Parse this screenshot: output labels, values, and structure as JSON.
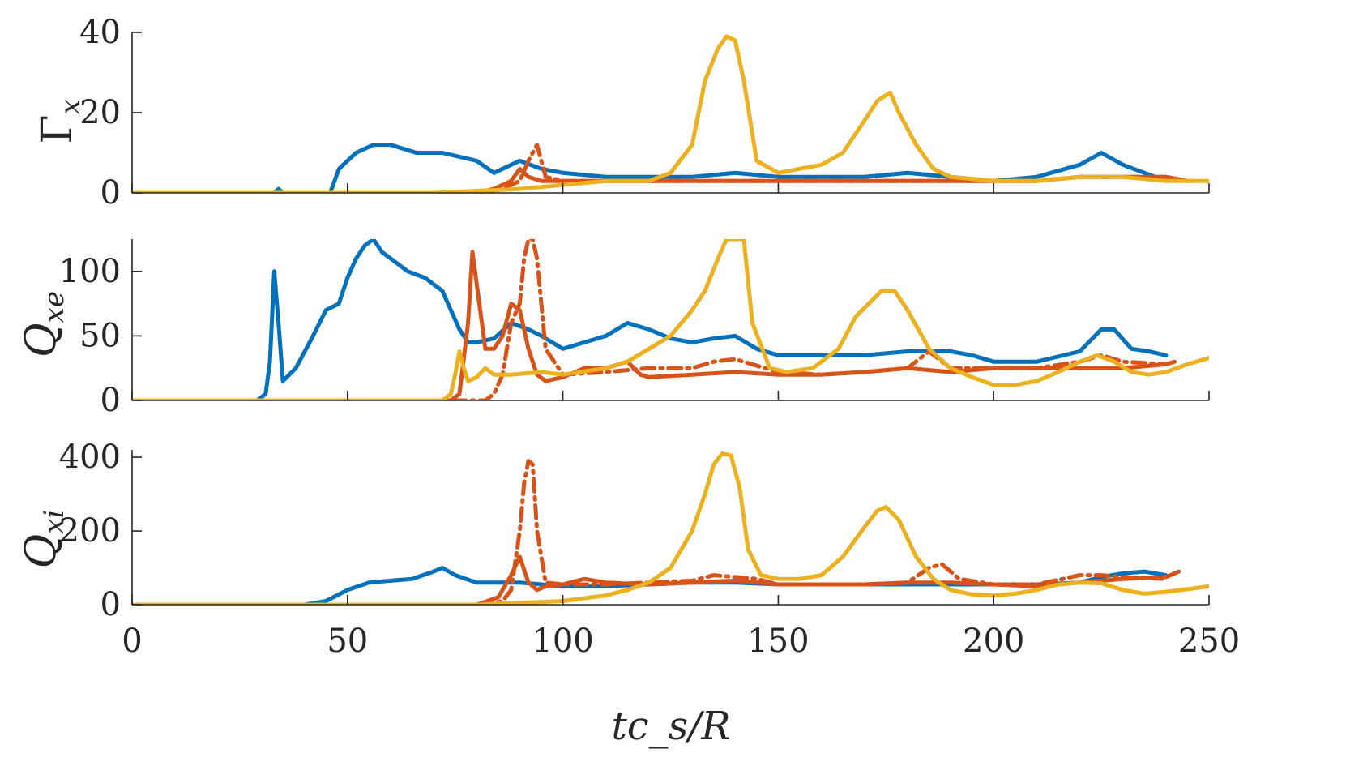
{
  "colors": {
    "blue": "#0072BD",
    "orange": "#D95319",
    "yellow": "#EDB120",
    "axis": "#262626"
  },
  "chart_data": [
    {
      "type": "line",
      "panel": "top",
      "ylabel": "Γ_x",
      "ylabel_main": "Γ",
      "ylabel_sub": "x",
      "xlabel": "",
      "xlim": [
        0,
        250
      ],
      "ylim": [
        0,
        40
      ],
      "yticks": [
        0,
        20,
        40
      ],
      "series": [
        {
          "name": "blue solid",
          "color_key": "blue",
          "dash": "solid",
          "x": [
            0,
            33,
            34,
            35,
            46,
            48,
            52,
            56,
            60,
            66,
            72,
            76,
            80,
            84,
            90,
            95,
            100,
            110,
            120,
            130,
            140,
            150,
            160,
            170,
            180,
            190,
            200,
            210,
            220,
            225,
            230,
            235,
            240
          ],
          "y": [
            0,
            0,
            1,
            0,
            0,
            6,
            10,
            12,
            12,
            10,
            10,
            9,
            8,
            5,
            8,
            6,
            5,
            4,
            4,
            4,
            5,
            4,
            4,
            4,
            5,
            4,
            3,
            4,
            7,
            10,
            7,
            5,
            3
          ]
        },
        {
          "name": "orange solid",
          "color_key": "orange",
          "dash": "solid",
          "x": [
            0,
            80,
            84,
            88,
            90,
            92,
            95,
            100,
            110,
            120,
            130,
            140,
            150,
            160,
            170,
            180,
            190,
            200,
            210,
            220,
            230,
            240,
            245
          ],
          "y": [
            0,
            0,
            1,
            3,
            6,
            4,
            3,
            3,
            3,
            3,
            3,
            3,
            3,
            3,
            3,
            3,
            3,
            3,
            3,
            4,
            4,
            4,
            3
          ]
        },
        {
          "name": "orange dash-dot",
          "color_key": "orange",
          "dash": "dashdot",
          "x": [
            0,
            82,
            86,
            90,
            92,
            94,
            96,
            100,
            110,
            120,
            130,
            140,
            150,
            160,
            170,
            180,
            190,
            200,
            210,
            220,
            230,
            240,
            245
          ],
          "y": [
            0,
            0,
            1,
            3,
            8,
            12,
            4,
            3,
            3,
            3,
            3,
            3,
            3,
            3,
            3,
            3,
            3,
            3,
            3,
            4,
            4,
            4,
            3
          ]
        },
        {
          "name": "yellow solid",
          "color_key": "yellow",
          "dash": "solid",
          "x": [
            0,
            70,
            80,
            90,
            100,
            110,
            120,
            125,
            130,
            133,
            136,
            138,
            140,
            142,
            145,
            150,
            155,
            160,
            165,
            170,
            173,
            176,
            178,
            182,
            186,
            190,
            200,
            210,
            220,
            230,
            240,
            250
          ],
          "y": [
            0,
            0,
            0.5,
            1,
            2,
            3,
            3,
            5,
            12,
            28,
            36,
            39,
            38,
            28,
            8,
            5,
            6,
            7,
            10,
            18,
            23,
            25,
            20,
            12,
            6,
            4,
            3,
            3,
            4,
            4,
            3,
            3
          ]
        }
      ]
    },
    {
      "type": "line",
      "panel": "middle",
      "ylabel": "Q_xe",
      "ylabel_main": "Q",
      "ylabel_sub": "xe",
      "xlabel": "",
      "xlim": [
        0,
        250
      ],
      "ylim": [
        0,
        125
      ],
      "yticks": [
        0,
        50,
        100
      ],
      "series": [
        {
          "name": "blue solid",
          "color_key": "blue",
          "dash": "solid",
          "x": [
            0,
            29,
            31,
            32,
            33,
            34,
            35,
            38,
            42,
            45,
            48,
            50,
            52,
            54,
            56,
            58,
            60,
            64,
            68,
            72,
            74,
            76,
            78,
            80,
            84,
            88,
            92,
            95,
            100,
            105,
            110,
            115,
            120,
            125,
            130,
            135,
            140,
            145,
            150,
            160,
            170,
            180,
            190,
            195,
            200,
            210,
            220,
            225,
            228,
            232,
            236,
            240
          ],
          "y": [
            0,
            0,
            5,
            30,
            100,
            60,
            15,
            25,
            50,
            70,
            75,
            95,
            110,
            120,
            125,
            115,
            110,
            100,
            95,
            85,
            70,
            55,
            45,
            45,
            48,
            60,
            55,
            50,
            40,
            45,
            50,
            60,
            55,
            48,
            45,
            48,
            50,
            40,
            35,
            35,
            35,
            38,
            38,
            35,
            30,
            30,
            38,
            55,
            55,
            40,
            38,
            35
          ]
        },
        {
          "name": "orange solid",
          "color_key": "orange",
          "dash": "solid",
          "x": [
            0,
            74,
            76,
            78,
            79,
            80,
            82,
            84,
            86,
            88,
            90,
            92,
            94,
            96,
            100,
            105,
            110,
            115,
            118,
            120,
            130,
            140,
            150,
            160,
            170,
            180,
            190,
            200,
            210,
            220,
            230,
            240,
            242
          ],
          "y": [
            0,
            0,
            5,
            60,
            115,
            90,
            40,
            40,
            50,
            75,
            70,
            40,
            20,
            15,
            18,
            25,
            25,
            30,
            20,
            18,
            20,
            22,
            20,
            20,
            22,
            25,
            22,
            25,
            25,
            25,
            25,
            28,
            30
          ]
        },
        {
          "name": "orange dash-dot",
          "color_key": "orange",
          "dash": "dashdot",
          "x": [
            0,
            82,
            84,
            86,
            88,
            90,
            91,
            92,
            93,
            94,
            96,
            100,
            110,
            120,
            130,
            135,
            140,
            150,
            160,
            170,
            180,
            185,
            190,
            200,
            210,
            220,
            225,
            230,
            240
          ],
          "y": [
            0,
            0,
            5,
            20,
            60,
            75,
            110,
            125,
            125,
            110,
            40,
            20,
            22,
            25,
            25,
            30,
            32,
            22,
            20,
            22,
            25,
            38,
            25,
            25,
            25,
            30,
            35,
            30,
            28
          ]
        },
        {
          "name": "yellow solid",
          "color_key": "yellow",
          "dash": "solid",
          "x": [
            0,
            72,
            74,
            75,
            76,
            77,
            78,
            80,
            82,
            84,
            88,
            95,
            100,
            110,
            115,
            120,
            125,
            130,
            133,
            136,
            138,
            140,
            142,
            144,
            148,
            152,
            158,
            164,
            168,
            171,
            174,
            177,
            180,
            185,
            190,
            195,
            200,
            205,
            210,
            215,
            220,
            224,
            228,
            232,
            236,
            240,
            245,
            250
          ],
          "y": [
            0,
            0,
            5,
            20,
            38,
            25,
            15,
            18,
            25,
            20,
            20,
            22,
            20,
            25,
            30,
            40,
            50,
            70,
            85,
            110,
            125,
            125,
            125,
            60,
            25,
            22,
            25,
            40,
            65,
            75,
            85,
            85,
            70,
            40,
            25,
            18,
            12,
            12,
            15,
            22,
            30,
            35,
            30,
            22,
            20,
            22,
            28,
            33
          ]
        }
      ]
    },
    {
      "type": "line",
      "panel": "bottom",
      "ylabel": "Q_xi",
      "ylabel_main": "Q",
      "ylabel_sub": "xi",
      "xlabel": "tc_s/R",
      "xlim": [
        0,
        250
      ],
      "ylim": [
        0,
        420
      ],
      "yticks": [
        0,
        200,
        400
      ],
      "xticks": [
        0,
        50,
        100,
        150,
        200,
        250
      ],
      "series": [
        {
          "name": "blue solid",
          "color_key": "blue",
          "dash": "solid",
          "x": [
            0,
            40,
            45,
            50,
            55,
            60,
            65,
            70,
            72,
            75,
            80,
            85,
            90,
            95,
            100,
            110,
            120,
            130,
            140,
            150,
            160,
            170,
            180,
            190,
            200,
            210,
            220,
            225,
            230,
            235,
            240
          ],
          "y": [
            0,
            0,
            10,
            40,
            60,
            65,
            70,
            90,
            100,
            80,
            60,
            60,
            60,
            55,
            50,
            50,
            55,
            60,
            60,
            55,
            55,
            55,
            55,
            55,
            55,
            55,
            60,
            75,
            85,
            90,
            80
          ]
        },
        {
          "name": "orange solid",
          "color_key": "orange",
          "dash": "solid",
          "x": [
            0,
            80,
            85,
            88,
            90,
            92,
            94,
            96,
            100,
            105,
            110,
            120,
            130,
            140,
            150,
            160,
            170,
            180,
            190,
            200,
            210,
            220,
            230,
            240,
            243
          ],
          "y": [
            0,
            0,
            20,
            80,
            130,
            60,
            40,
            50,
            55,
            70,
            60,
            55,
            60,
            65,
            55,
            55,
            55,
            60,
            60,
            55,
            50,
            60,
            70,
            75,
            90
          ]
        },
        {
          "name": "orange dash-dot",
          "color_key": "orange",
          "dash": "dashdot",
          "x": [
            0,
            82,
            86,
            88,
            90,
            91,
            92,
            93,
            94,
            96,
            100,
            110,
            120,
            130,
            135,
            140,
            145,
            150,
            160,
            170,
            180,
            185,
            188,
            192,
            200,
            210,
            220,
            225,
            230,
            240
          ],
          "y": [
            0,
            0,
            10,
            40,
            200,
            330,
            390,
            380,
            200,
            60,
            55,
            55,
            60,
            65,
            80,
            75,
            70,
            55,
            55,
            55,
            60,
            100,
            110,
            70,
            55,
            55,
            80,
            80,
            75,
            70
          ]
        },
        {
          "name": "yellow solid",
          "color_key": "yellow",
          "dash": "solid",
          "x": [
            0,
            80,
            90,
            100,
            110,
            115,
            120,
            125,
            130,
            133,
            135,
            137,
            139,
            141,
            143,
            146,
            150,
            155,
            160,
            165,
            170,
            173,
            175,
            178,
            182,
            186,
            190,
            195,
            200,
            205,
            210,
            215,
            220,
            225,
            230,
            235,
            240,
            245,
            250
          ],
          "y": [
            0,
            0,
            5,
            10,
            25,
            40,
            60,
            100,
            200,
            300,
            380,
            410,
            405,
            320,
            150,
            80,
            70,
            70,
            80,
            130,
            210,
            255,
            265,
            230,
            130,
            70,
            40,
            28,
            25,
            30,
            40,
            55,
            60,
            58,
            40,
            30,
            35,
            42,
            50
          ]
        }
      ]
    }
  ]
}
